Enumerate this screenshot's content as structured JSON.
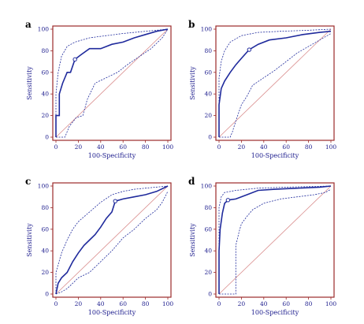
{
  "colors": {
    "frame": "#9b2a2a",
    "curve": "#1f2a9c",
    "diagonal": "#d98c8c",
    "text": "#1a1a8c"
  },
  "chart_data": [
    {
      "panel": "a",
      "type": "line",
      "xlabel": "100-Specificity",
      "ylabel": "Sensitivity",
      "xlim": [
        0,
        100
      ],
      "ylim": [
        0,
        100
      ],
      "xticks": [
        "0",
        "20",
        "40",
        "60",
        "80",
        "100"
      ],
      "yticks": [
        "0",
        "20",
        "40",
        "60",
        "80",
        "100"
      ],
      "diagonal": true,
      "cutoff_point": [
        17,
        72
      ],
      "series": [
        {
          "style": "solid",
          "points": [
            [
              0,
              0
            ],
            [
              0,
              20
            ],
            [
              3,
              20
            ],
            [
              3,
              40
            ],
            [
              6,
              50
            ],
            [
              10,
              60
            ],
            [
              13,
              60
            ],
            [
              17,
              72
            ],
            [
              22,
              76
            ],
            [
              30,
              82
            ],
            [
              40,
              82
            ],
            [
              50,
              86
            ],
            [
              60,
              88
            ],
            [
              70,
              92
            ],
            [
              80,
              95
            ],
            [
              90,
              98
            ],
            [
              100,
              100
            ]
          ]
        },
        {
          "style": "dashed",
          "points": [
            [
              0,
              0
            ],
            [
              0,
              40
            ],
            [
              2,
              60
            ],
            [
              5,
              75
            ],
            [
              10,
              84
            ],
            [
              17,
              88
            ],
            [
              30,
              92
            ],
            [
              45,
              94
            ],
            [
              60,
              96
            ],
            [
              80,
              98
            ],
            [
              100,
              100
            ]
          ]
        },
        {
          "style": "dashed",
          "points": [
            [
              0,
              0
            ],
            [
              8,
              0
            ],
            [
              12,
              10
            ],
            [
              18,
              18
            ],
            [
              24,
              20
            ],
            [
              28,
              35
            ],
            [
              35,
              50
            ],
            [
              45,
              55
            ],
            [
              55,
              60
            ],
            [
              65,
              68
            ],
            [
              75,
              75
            ],
            [
              85,
              82
            ],
            [
              95,
              92
            ],
            [
              100,
              100
            ]
          ]
        }
      ]
    },
    {
      "panel": "b",
      "type": "line",
      "xlabel": "100-Specificity",
      "ylabel": "Sensitivity",
      "xlim": [
        0,
        100
      ],
      "ylim": [
        0,
        100
      ],
      "xticks": [
        "0",
        "20",
        "40",
        "60",
        "80",
        "100"
      ],
      "yticks": [
        "0",
        "20",
        "40",
        "60",
        "80",
        "100"
      ],
      "diagonal": true,
      "cutoff_point": [
        27,
        81
      ],
      "series": [
        {
          "style": "solid",
          "points": [
            [
              0,
              0
            ],
            [
              0,
              30
            ],
            [
              2,
              45
            ],
            [
              5,
              52
            ],
            [
              10,
              60
            ],
            [
              15,
              67
            ],
            [
              20,
              73
            ],
            [
              27,
              81
            ],
            [
              35,
              86
            ],
            [
              45,
              90
            ],
            [
              60,
              92
            ],
            [
              75,
              95
            ],
            [
              90,
              97
            ],
            [
              100,
              98
            ]
          ]
        },
        {
          "style": "dashed",
          "points": [
            [
              0,
              0
            ],
            [
              0,
              55
            ],
            [
              2,
              70
            ],
            [
              5,
              80
            ],
            [
              10,
              88
            ],
            [
              20,
              94
            ],
            [
              35,
              97
            ],
            [
              55,
              98
            ],
            [
              80,
              99
            ],
            [
              100,
              100
            ]
          ]
        },
        {
          "style": "dashed",
          "points": [
            [
              0,
              0
            ],
            [
              10,
              0
            ],
            [
              12,
              5
            ],
            [
              15,
              15
            ],
            [
              20,
              30
            ],
            [
              25,
              38
            ],
            [
              30,
              48
            ],
            [
              40,
              55
            ],
            [
              50,
              62
            ],
            [
              60,
              70
            ],
            [
              70,
              78
            ],
            [
              80,
              84
            ],
            [
              90,
              90
            ],
            [
              100,
              96
            ]
          ]
        }
      ]
    },
    {
      "panel": "c",
      "type": "line",
      "xlabel": "100-Specificity",
      "ylabel": "Sensitivity",
      "xlim": [
        0,
        100
      ],
      "ylim": [
        0,
        100
      ],
      "xticks": [
        "0",
        "20",
        "40",
        "60",
        "80",
        "100"
      ],
      "yticks": [
        "0",
        "20",
        "40",
        "60",
        "80",
        "100"
      ],
      "diagonal": true,
      "cutoff_point": [
        53,
        86
      ],
      "series": [
        {
          "style": "solid",
          "points": [
            [
              0,
              0
            ],
            [
              2,
              10
            ],
            [
              5,
              15
            ],
            [
              10,
              20
            ],
            [
              15,
              30
            ],
            [
              20,
              38
            ],
            [
              25,
              45
            ],
            [
              30,
              50
            ],
            [
              35,
              55
            ],
            [
              40,
              62
            ],
            [
              45,
              70
            ],
            [
              50,
              76
            ],
            [
              53,
              86
            ],
            [
              60,
              88
            ],
            [
              70,
              90
            ],
            [
              80,
              92
            ],
            [
              90,
              95
            ],
            [
              100,
              100
            ]
          ]
        },
        {
          "style": "dashed",
          "points": [
            [
              0,
              0
            ],
            [
              0,
              20
            ],
            [
              5,
              38
            ],
            [
              10,
              50
            ],
            [
              15,
              60
            ],
            [
              20,
              67
            ],
            [
              30,
              76
            ],
            [
              40,
              85
            ],
            [
              50,
              92
            ],
            [
              60,
              95
            ],
            [
              70,
              97
            ],
            [
              80,
              98
            ],
            [
              100,
              100
            ]
          ]
        },
        {
          "style": "dashed",
          "points": [
            [
              0,
              0
            ],
            [
              5,
              2
            ],
            [
              10,
              5
            ],
            [
              15,
              10
            ],
            [
              20,
              15
            ],
            [
              30,
              20
            ],
            [
              40,
              30
            ],
            [
              50,
              40
            ],
            [
              60,
              52
            ],
            [
              70,
              60
            ],
            [
              80,
              70
            ],
            [
              90,
              78
            ],
            [
              95,
              85
            ],
            [
              100,
              95
            ]
          ]
        }
      ]
    },
    {
      "panel": "d",
      "type": "line",
      "xlabel": "100-Specificity",
      "ylabel": "Sensitivity",
      "xlim": [
        0,
        100
      ],
      "ylim": [
        0,
        100
      ],
      "xticks": [
        "0",
        "20",
        "40",
        "60",
        "80",
        "100"
      ],
      "yticks": [
        "0",
        "20",
        "40",
        "60",
        "80",
        "100"
      ],
      "diagonal": true,
      "cutoff_point": [
        8,
        87
      ],
      "series": [
        {
          "style": "solid",
          "points": [
            [
              0,
              0
            ],
            [
              0,
              40
            ],
            [
              1,
              60
            ],
            [
              3,
              75
            ],
            [
              5,
              84
            ],
            [
              8,
              87
            ],
            [
              15,
              88
            ],
            [
              25,
              92
            ],
            [
              35,
              96
            ],
            [
              50,
              97
            ],
            [
              70,
              98
            ],
            [
              90,
              99
            ],
            [
              100,
              100
            ]
          ]
        },
        {
          "style": "dashed",
          "points": [
            [
              0,
              0
            ],
            [
              0,
              80
            ],
            [
              2,
              90
            ],
            [
              5,
              94
            ],
            [
              15,
              96
            ],
            [
              35,
              98
            ],
            [
              60,
              99
            ],
            [
              100,
              100
            ]
          ]
        },
        {
          "style": "dashed",
          "points": [
            [
              0,
              0
            ],
            [
              15,
              0
            ],
            [
              15,
              45
            ],
            [
              18,
              58
            ],
            [
              20,
              65
            ],
            [
              25,
              72
            ],
            [
              30,
              78
            ],
            [
              40,
              84
            ],
            [
              55,
              88
            ],
            [
              70,
              90
            ],
            [
              85,
              92
            ],
            [
              95,
              94
            ],
            [
              100,
              97
            ]
          ]
        }
      ]
    }
  ]
}
